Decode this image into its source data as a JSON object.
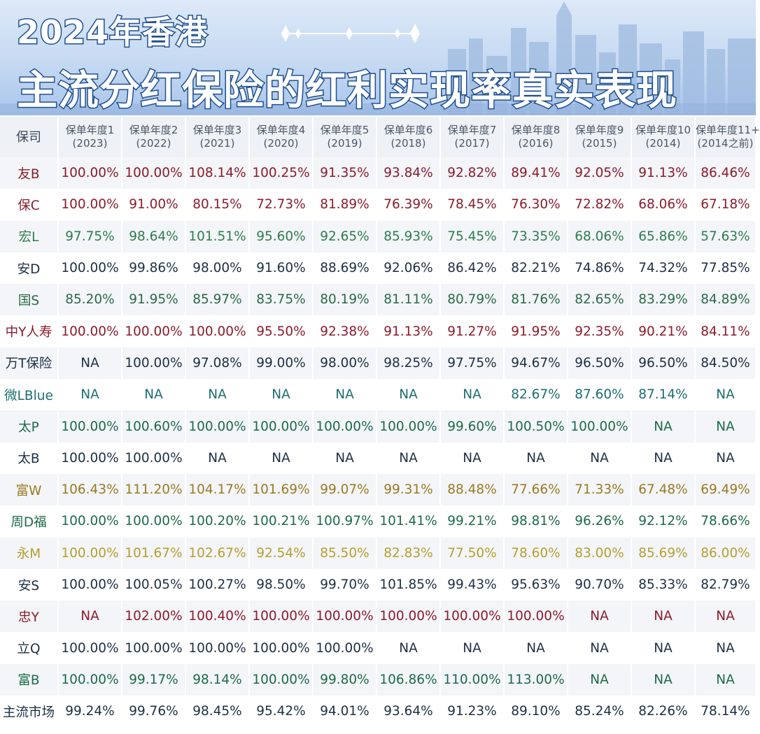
{
  "header": {
    "title_line1": "2024年香港",
    "title_line2": "主流分红保险的红利实现率真实表现"
  },
  "table": {
    "company_header": "保司",
    "columns": [
      {
        "label": "保单年度1",
        "year": "(2023)"
      },
      {
        "label": "保单年度2",
        "year": "(2022)"
      },
      {
        "label": "保单年度3",
        "year": "(2021)"
      },
      {
        "label": "保单年度4",
        "year": "(2020)"
      },
      {
        "label": "保单年度5",
        "year": "(2019)"
      },
      {
        "label": "保单年度6",
        "year": "(2018)"
      },
      {
        "label": "保单年度7",
        "year": "(2017)"
      },
      {
        "label": "保单年度8",
        "year": "(2016)"
      },
      {
        "label": "保单年度9",
        "year": "(2015)"
      },
      {
        "label": "保单年度10",
        "year": "(2014)"
      },
      {
        "label": "保单年度11+",
        "year": "(2014之前)"
      }
    ],
    "rows": [
      {
        "company": "友B",
        "color": "#8a1c2c",
        "values": [
          "100.00%",
          "100.00%",
          "108.14%",
          "100.25%",
          "91.35%",
          "93.84%",
          "92.82%",
          "89.41%",
          "92.05%",
          "91.13%",
          "86.46%"
        ]
      },
      {
        "company": "保C",
        "color": "#8a1c2c",
        "values": [
          "100.00%",
          "91.00%",
          "80.15%",
          "72.73%",
          "81.89%",
          "76.39%",
          "78.45%",
          "76.30%",
          "72.82%",
          "68.06%",
          "67.18%"
        ]
      },
      {
        "company": "宏L",
        "color": "#2e7d4f",
        "values": [
          "97.75%",
          "98.64%",
          "101.51%",
          "95.60%",
          "92.65%",
          "85.93%",
          "75.45%",
          "73.35%",
          "68.06%",
          "65.86%",
          "57.63%"
        ]
      },
      {
        "company": "安D",
        "color": "#1f2f45",
        "values": [
          "100.00%",
          "99.86%",
          "98.00%",
          "91.60%",
          "88.69%",
          "92.06%",
          "86.42%",
          "82.21%",
          "74.86%",
          "74.32%",
          "77.85%"
        ]
      },
      {
        "company": "国S",
        "color": "#2b6a48",
        "values": [
          "85.20%",
          "91.95%",
          "85.97%",
          "83.75%",
          "80.19%",
          "81.11%",
          "80.79%",
          "81.76%",
          "82.65%",
          "83.29%",
          "84.89%"
        ]
      },
      {
        "company": "中Y人寿",
        "color": "#8a1c2c",
        "values": [
          "100.00%",
          "100.00%",
          "100.00%",
          "95.50%",
          "92.38%",
          "91.13%",
          "91.27%",
          "91.95%",
          "92.35%",
          "90.21%",
          "84.11%"
        ]
      },
      {
        "company": "万T保险",
        "color": "#1f2f45",
        "values": [
          "NA",
          "100.00%",
          "97.08%",
          "99.00%",
          "98.00%",
          "98.25%",
          "97.75%",
          "94.67%",
          "96.50%",
          "96.50%",
          "84.50%"
        ]
      },
      {
        "company": "微LBlue",
        "color": "#1d6e72",
        "values": [
          "NA",
          "NA",
          "NA",
          "NA",
          "NA",
          "NA",
          "NA",
          "82.67%",
          "87.60%",
          "87.14%",
          "NA"
        ]
      },
      {
        "company": "太P",
        "color": "#1e6a4a",
        "values": [
          "100.00%",
          "100.60%",
          "100.00%",
          "100.00%",
          "100.00%",
          "100.00%",
          "99.60%",
          "100.50%",
          "100.00%",
          "NA",
          "NA"
        ]
      },
      {
        "company": "太B",
        "color": "#1f2f45",
        "values": [
          "100.00%",
          "100.00%",
          "NA",
          "NA",
          "NA",
          "NA",
          "NA",
          "NA",
          "NA",
          "NA",
          "NA"
        ]
      },
      {
        "company": "富W",
        "color": "#9a7a22",
        "values": [
          "106.43%",
          "111.20%",
          "104.17%",
          "101.69%",
          "99.07%",
          "99.31%",
          "88.48%",
          "77.66%",
          "71.33%",
          "67.48%",
          "69.49%"
        ]
      },
      {
        "company": "周D福",
        "color": "#1e6a4a",
        "values": [
          "100.00%",
          "100.00%",
          "100.20%",
          "100.21%",
          "100.97%",
          "101.41%",
          "99.21%",
          "98.81%",
          "96.26%",
          "92.12%",
          "78.66%"
        ]
      },
      {
        "company": "永M",
        "color": "#b5a030",
        "values": [
          "100.00%",
          "101.67%",
          "102.67%",
          "92.54%",
          "85.50%",
          "82.83%",
          "77.50%",
          "78.60%",
          "83.00%",
          "85.69%",
          "86.00%"
        ]
      },
      {
        "company": "安S",
        "color": "#1f2f45",
        "values": [
          "100.00%",
          "100.05%",
          "100.27%",
          "98.50%",
          "99.70%",
          "101.85%",
          "99.43%",
          "95.63%",
          "90.70%",
          "85.33%",
          "82.79%"
        ]
      },
      {
        "company": "忠Y",
        "color": "#8a1c2c",
        "values": [
          "NA",
          "102.00%",
          "100.40%",
          "100.00%",
          "100.00%",
          "100.00%",
          "100.00%",
          "100.00%",
          "NA",
          "NA",
          "NA"
        ]
      },
      {
        "company": "立Q",
        "color": "#1f2f45",
        "values": [
          "100.00%",
          "100.00%",
          "100.00%",
          "100.00%",
          "100.00%",
          "NA",
          "NA",
          "NA",
          "NA",
          "NA",
          "NA"
        ]
      },
      {
        "company": "富B",
        "color": "#1e6a4a",
        "values": [
          "100.00%",
          "99.17%",
          "98.14%",
          "100.00%",
          "99.80%",
          "106.86%",
          "110.00%",
          "113.00%",
          "NA",
          "NA",
          "NA"
        ]
      },
      {
        "company": "主流市场",
        "color": "#1f2f45",
        "values": [
          "99.24%",
          "99.76%",
          "98.45%",
          "95.42%",
          "94.01%",
          "93.64%",
          "91.23%",
          "89.10%",
          "85.24%",
          "82.26%",
          "78.14%"
        ]
      }
    ]
  }
}
